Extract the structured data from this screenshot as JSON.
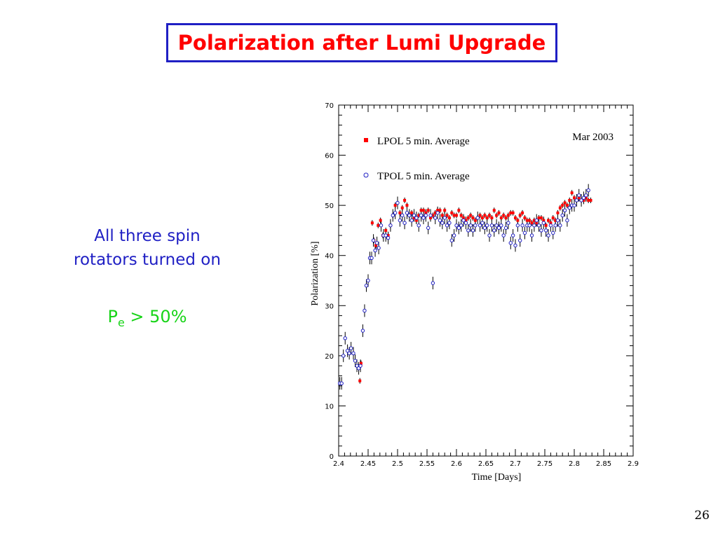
{
  "slide": {
    "title": "Polarization after Lumi Upgrade",
    "text_line1": "All three spin",
    "text_line2": "rotators turned on",
    "pe_symbol": "P",
    "pe_sub": "e",
    "pe_rest": " > 50%",
    "page_number": "26"
  },
  "colors": {
    "title": "#ff0000",
    "title_border": "#1f1fc4",
    "side_text": "#1f1fc4",
    "pe_text": "#18d418",
    "lpol": "#ff0000",
    "tpol": "#1f1fc4"
  },
  "chart_data": {
    "type": "scatter",
    "xlabel": "Time [Days]",
    "ylabel": "Polarization [%]",
    "xlim": [
      2.4,
      2.9
    ],
    "ylim": [
      0,
      70
    ],
    "x_ticks": [
      "2.4",
      "2.45",
      "2.5",
      "2.55",
      "2.6",
      "2.65",
      "2.7",
      "2.75",
      "2.8",
      "2.85",
      "2.9"
    ],
    "y_ticks": [
      "0",
      "10",
      "20",
      "30",
      "40",
      "50",
      "60",
      "70"
    ],
    "annotation": "Mar 2003",
    "legend_position": "top-left",
    "series": [
      {
        "name": "LPOL   5 min. Average",
        "marker": "filled-square",
        "x": [
          2.436,
          2.438,
          2.457,
          2.46,
          2.463,
          2.467,
          2.471,
          2.475,
          2.48,
          2.484,
          2.488,
          2.492,
          2.496,
          2.5,
          2.504,
          2.508,
          2.512,
          2.516,
          2.52,
          2.524,
          2.528,
          2.532,
          2.536,
          2.54,
          2.544,
          2.548,
          2.552,
          2.556,
          2.56,
          2.564,
          2.568,
          2.572,
          2.576,
          2.58,
          2.584,
          2.588,
          2.592,
          2.596,
          2.6,
          2.604,
          2.608,
          2.612,
          2.616,
          2.62,
          2.624,
          2.628,
          2.632,
          2.636,
          2.64,
          2.644,
          2.648,
          2.652,
          2.656,
          2.66,
          2.664,
          2.668,
          2.672,
          2.676,
          2.68,
          2.684,
          2.688,
          2.692,
          2.696,
          2.7,
          2.704,
          2.708,
          2.712,
          2.716,
          2.72,
          2.724,
          2.728,
          2.732,
          2.736,
          2.74,
          2.744,
          2.748,
          2.752,
          2.756,
          2.76,
          2.764,
          2.768,
          2.772,
          2.776,
          2.78,
          2.784,
          2.788,
          2.792,
          2.796,
          2.8,
          2.804,
          2.808,
          2.812,
          2.816,
          2.82,
          2.824,
          2.828
        ],
        "y": [
          15,
          18.5,
          46.5,
          43,
          42,
          46,
          47,
          44,
          45,
          44,
          46,
          48,
          50,
          50.5,
          48.5,
          49.5,
          51,
          50,
          48,
          48.5,
          47.5,
          47,
          48,
          49,
          49,
          48.5,
          49,
          47.5,
          48,
          48.5,
          49,
          49,
          48,
          49,
          48,
          47.5,
          48.5,
          48,
          48,
          49,
          48,
          47.5,
          47,
          47.5,
          48,
          47.5,
          47,
          47.5,
          48,
          47.5,
          48,
          47.5,
          48,
          47.5,
          49,
          48,
          48.5,
          47.5,
          48,
          47.5,
          48,
          48.5,
          48.5,
          47.5,
          47,
          48,
          48.5,
          47.5,
          47,
          47,
          46.5,
          47,
          46.5,
          47.5,
          47.5,
          47,
          46,
          47,
          46.5,
          47.5,
          47,
          48.5,
          49.5,
          50,
          50.5,
          50,
          51,
          52.5,
          51.5,
          51,
          51.5,
          51,
          51,
          51.5,
          51,
          51
        ]
      },
      {
        "name": "TPOL   5 min. Average",
        "marker": "open-circle",
        "x": [
          2.402,
          2.405,
          2.408,
          2.411,
          2.415,
          2.418,
          2.421,
          2.425,
          2.428,
          2.431,
          2.434,
          2.437,
          2.441,
          2.444,
          2.447,
          2.45,
          2.453,
          2.456,
          2.459,
          2.462,
          2.465,
          2.468,
          2.472,
          2.476,
          2.48,
          2.484,
          2.488,
          2.492,
          2.496,
          2.5,
          2.504,
          2.508,
          2.512,
          2.516,
          2.52,
          2.524,
          2.528,
          2.532,
          2.536,
          2.54,
          2.544,
          2.548,
          2.552,
          2.556,
          2.56,
          2.564,
          2.568,
          2.572,
          2.576,
          2.58,
          2.584,
          2.588,
          2.592,
          2.596,
          2.6,
          2.604,
          2.608,
          2.612,
          2.616,
          2.62,
          2.624,
          2.628,
          2.632,
          2.636,
          2.64,
          2.644,
          2.648,
          2.652,
          2.656,
          2.66,
          2.664,
          2.668,
          2.672,
          2.676,
          2.68,
          2.684,
          2.688,
          2.692,
          2.696,
          2.7,
          2.704,
          2.708,
          2.712,
          2.716,
          2.72,
          2.724,
          2.728,
          2.732,
          2.736,
          2.74,
          2.744,
          2.748,
          2.752,
          2.756,
          2.76,
          2.764,
          2.768,
          2.772,
          2.776,
          2.78,
          2.784,
          2.788,
          2.792,
          2.796,
          2.8,
          2.804,
          2.808,
          2.812,
          2.816,
          2.82,
          2.824
        ],
        "y": [
          14.5,
          14.5,
          20,
          23.5,
          21,
          20.5,
          21.5,
          20.5,
          19,
          18,
          17.5,
          18,
          25,
          29,
          34,
          35,
          39.5,
          39.5,
          43,
          41,
          42.5,
          41.5,
          46,
          44,
          44,
          43.5,
          46,
          48,
          48.5,
          50.5,
          47,
          48,
          46.5,
          48.5,
          48,
          47,
          48,
          47.5,
          46,
          48,
          47.5,
          48,
          45.5,
          48,
          34.5,
          47.5,
          48.5,
          47,
          46.5,
          47.5,
          46,
          46.5,
          43,
          44,
          46,
          45.5,
          46,
          47,
          46.5,
          45,
          46,
          45,
          46,
          47.5,
          46,
          46.5,
          45.5,
          46,
          44,
          46,
          45,
          46,
          45.5,
          46,
          44,
          45.5,
          46.5,
          42.5,
          44,
          42,
          46,
          43,
          46,
          44.5,
          46,
          46,
          44,
          46,
          47,
          46,
          45,
          46.5,
          45,
          44,
          46,
          44.5,
          46,
          47,
          46,
          48,
          49,
          47,
          49.5,
          50,
          50,
          51,
          52,
          51,
          51.5,
          52,
          53
        ]
      }
    ]
  }
}
